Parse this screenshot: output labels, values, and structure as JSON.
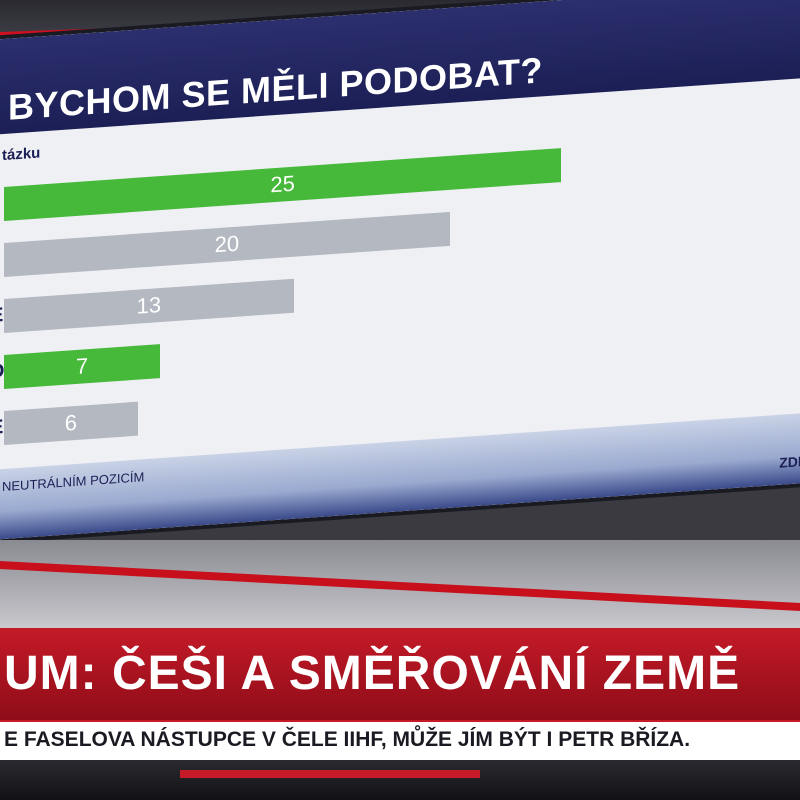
{
  "broadcast": {
    "graphic_title": "BYCHOM SE MĚLI PODOBAT?",
    "question_fragment": "tázku",
    "footnote_fragment": "NEUTRÁLNÍM POZICÍM",
    "source_fragment": "ZDR",
    "headline": "UM: ČEŠI A SMĚŘOVÁNÍ ZEMĚ",
    "ticker": "E FASELOVA NÁSTUPCE V ČELE IIHF, MŮŽE JÍM BÝT I PETR BŘÍZA."
  },
  "colors": {
    "highlight": "#46b83a",
    "neutral": "#b4b8c0",
    "title_bg": "#1c1f55",
    "lower_third": "#c51a28"
  },
  "chart_data": {
    "type": "bar",
    "orientation": "horizontal",
    "title": "BYCHOM SE MĚLI PODOBAT?",
    "categories": [
      "",
      "",
      "E",
      "D",
      "E"
    ],
    "values": [
      25,
      20,
      13,
      7,
      6
    ],
    "data_labels": [
      "25",
      "20",
      "13",
      "7",
      "6"
    ],
    "highlighted": [
      true,
      false,
      false,
      true,
      false
    ],
    "xlim": [
      0,
      35
    ],
    "grid": false,
    "legend": "none"
  }
}
